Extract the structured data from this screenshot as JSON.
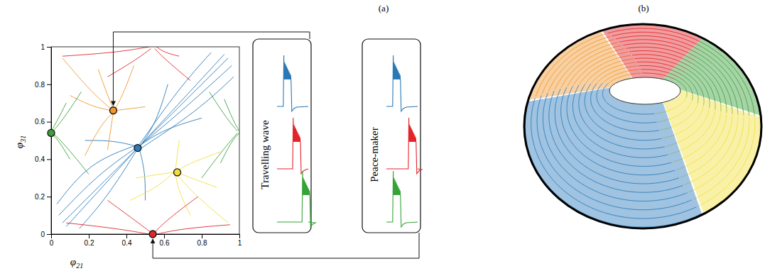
{
  "panel_labels": [
    "(a)",
    "(b)"
  ],
  "chart_data": {
    "type": "scatter",
    "x_label": "φ21",
    "y_label": "φ31",
    "xlim": [
      0,
      1
    ],
    "ylim": [
      0,
      1
    ],
    "xticks": [
      0,
      0.2,
      0.4,
      0.6,
      0.8,
      1
    ],
    "yticks": [
      0,
      0.2,
      0.4,
      0.6,
      0.8,
      1
    ],
    "series": [
      {
        "type": "scatter",
        "x": [
          0,
          0.33,
          0.46,
          0.67,
          0.54
        ],
        "values": [
          0.54,
          0.66,
          0.46,
          0.33,
          0
        ],
        "colors": [
          "#3c9f3c",
          "#f0972e",
          "#2b7bba",
          "#f2df3f",
          "#e0262b"
        ]
      },
      {
        "type": "line",
        "color": "#2b7bba",
        "x": [
          0.04,
          0.25,
          0.45
        ],
        "values": [
          0.1,
          0.32,
          0.46
        ]
      },
      {
        "type": "line",
        "color": "#2b7bba",
        "x": [
          0.08,
          0.28,
          0.45
        ],
        "values": [
          0.04,
          0.26,
          0.45
        ]
      },
      {
        "type": "line",
        "color": "#2b7bba",
        "x": [
          0.03,
          0.2,
          0.44
        ],
        "values": [
          0.16,
          0.38,
          0.47
        ]
      },
      {
        "type": "line",
        "color": "#2b7bba",
        "x": [
          0.15,
          0.3,
          0.45
        ],
        "values": [
          0.03,
          0.2,
          0.44
        ]
      },
      {
        "type": "line",
        "color": "#2b7bba",
        "x": [
          0.96,
          0.72,
          0.47
        ],
        "values": [
          0.9,
          0.68,
          0.47
        ]
      },
      {
        "type": "line",
        "color": "#2b7bba",
        "x": [
          0.92,
          0.7,
          0.47
        ],
        "values": [
          0.96,
          0.72,
          0.47
        ]
      },
      {
        "type": "line",
        "color": "#2b7bba",
        "x": [
          0.97,
          0.78,
          0.48
        ],
        "values": [
          0.84,
          0.66,
          0.46
        ]
      },
      {
        "type": "line",
        "color": "#2b7bba",
        "x": [
          0.85,
          0.68,
          0.47
        ],
        "values": [
          0.97,
          0.78,
          0.48
        ]
      },
      {
        "type": "line",
        "color": "#2b7bba",
        "x": [
          0.18,
          0.33,
          0.45
        ],
        "values": [
          0.5,
          0.5,
          0.47
        ]
      },
      {
        "type": "line",
        "color": "#2b7bba",
        "x": [
          0.5,
          0.5,
          0.47
        ],
        "values": [
          0.18,
          0.33,
          0.45
        ]
      },
      {
        "type": "line",
        "color": "#2b7bba",
        "x": [
          0.62,
          0.56,
          0.48
        ],
        "values": [
          0.8,
          0.6,
          0.48
        ]
      },
      {
        "type": "line",
        "color": "#2b7bba",
        "x": [
          0.8,
          0.6,
          0.48
        ],
        "values": [
          0.62,
          0.56,
          0.48
        ]
      },
      {
        "type": "line",
        "color": "#2b7bba",
        "x": [
          0.06,
          0.3,
          0.45
        ],
        "values": [
          0.06,
          0.3,
          0.45
        ]
      },
      {
        "type": "line",
        "color": "#2b7bba",
        "x": [
          0.94,
          0.7,
          0.47
        ],
        "values": [
          0.94,
          0.7,
          0.47
        ]
      },
      {
        "type": "line",
        "color": "#f0972e",
        "x": [
          0.06,
          0.22,
          0.33
        ],
        "values": [
          0.94,
          0.75,
          0.66
        ]
      },
      {
        "type": "line",
        "color": "#f0972e",
        "x": [
          0.18,
          0.26,
          0.33
        ],
        "values": [
          0.42,
          0.58,
          0.65
        ]
      },
      {
        "type": "line",
        "color": "#f0972e",
        "x": [
          0.44,
          0.38,
          0.34
        ],
        "values": [
          0.9,
          0.74,
          0.67
        ]
      },
      {
        "type": "line",
        "color": "#f0972e",
        "x": [
          0.1,
          0.22,
          0.32
        ],
        "values": [
          0.74,
          0.68,
          0.66
        ]
      },
      {
        "type": "line",
        "color": "#f0972e",
        "x": [
          0.5,
          0.42,
          0.34
        ],
        "values": [
          0.68,
          0.67,
          0.66
        ]
      },
      {
        "type": "line",
        "color": "#f0972e",
        "x": [
          0.25,
          0.3,
          0.33
        ],
        "values": [
          0.88,
          0.74,
          0.67
        ]
      },
      {
        "type": "line",
        "color": "#f0972e",
        "x": [
          0.3,
          0.32,
          0.33
        ],
        "values": [
          0.45,
          0.58,
          0.65
        ]
      },
      {
        "type": "line",
        "color": "#f2df3f",
        "x": [
          0.94,
          0.75,
          0.66
        ],
        "values": [
          0.06,
          0.22,
          0.33
        ]
      },
      {
        "type": "line",
        "color": "#f2df3f",
        "x": [
          0.42,
          0.58,
          0.65
        ],
        "values": [
          0.18,
          0.26,
          0.33
        ]
      },
      {
        "type": "line",
        "color": "#f2df3f",
        "x": [
          0.9,
          0.74,
          0.67
        ],
        "values": [
          0.44,
          0.38,
          0.34
        ]
      },
      {
        "type": "line",
        "color": "#f2df3f",
        "x": [
          0.74,
          0.68,
          0.66
        ],
        "values": [
          0.1,
          0.22,
          0.32
        ]
      },
      {
        "type": "line",
        "color": "#f2df3f",
        "x": [
          0.68,
          0.67,
          0.66
        ],
        "values": [
          0.5,
          0.42,
          0.34
        ]
      },
      {
        "type": "line",
        "color": "#f2df3f",
        "x": [
          0.88,
          0.74,
          0.67
        ],
        "values": [
          0.25,
          0.3,
          0.33
        ]
      },
      {
        "type": "line",
        "color": "#f2df3f",
        "x": [
          0.45,
          0.58,
          0.65
        ],
        "values": [
          0.3,
          0.32,
          0.33
        ]
      },
      {
        "type": "line",
        "color": "#3c9f3c",
        "x": [
          0.2,
          0.08,
          0.01
        ],
        "values": [
          0.32,
          0.47,
          0.54
        ]
      },
      {
        "type": "line",
        "color": "#3c9f3c",
        "x": [
          0.16,
          0.07,
          0.01
        ],
        "values": [
          0.76,
          0.62,
          0.55
        ]
      },
      {
        "type": "line",
        "color": "#3c9f3c",
        "x": [
          0.1,
          0.04,
          0
        ],
        "values": [
          0.4,
          0.5,
          0.54
        ]
      },
      {
        "type": "line",
        "color": "#3c9f3c",
        "x": [
          0.08,
          0.03,
          0
        ],
        "values": [
          0.7,
          0.6,
          0.55
        ]
      },
      {
        "type": "line",
        "color": "#3c9f3c",
        "x": [
          0.8,
          0.92,
          0.99
        ],
        "values": [
          0.3,
          0.46,
          0.54
        ]
      },
      {
        "type": "line",
        "color": "#3c9f3c",
        "x": [
          0.84,
          0.93,
          0.99
        ],
        "values": [
          0.76,
          0.62,
          0.55
        ]
      },
      {
        "type": "line",
        "color": "#3c9f3c",
        "x": [
          0.9,
          0.96,
          1
        ],
        "values": [
          0.38,
          0.5,
          0.54
        ]
      },
      {
        "type": "line",
        "color": "#3c9f3c",
        "x": [
          0.92,
          0.97,
          1
        ],
        "values": [
          0.72,
          0.6,
          0.55
        ]
      },
      {
        "type": "line",
        "color": "#e0262b",
        "x": [
          0.3,
          0.45,
          0.53
        ],
        "values": [
          0.18,
          0.07,
          0.01
        ]
      },
      {
        "type": "line",
        "color": "#e0262b",
        "x": [
          0.78,
          0.62,
          0.55
        ],
        "values": [
          0.2,
          0.08,
          0.01
        ]
      },
      {
        "type": "line",
        "color": "#e0262b",
        "x": [
          0.08,
          0.35,
          0.52
        ],
        "values": [
          0.06,
          0.03,
          0
        ]
      },
      {
        "type": "line",
        "color": "#e0262b",
        "x": [
          0.95,
          0.7,
          0.56
        ],
        "values": [
          0.05,
          0.03,
          0
        ]
      },
      {
        "type": "line",
        "color": "#e0262b",
        "x": [
          0.3,
          0.45,
          0.53
        ],
        "values": [
          0.84,
          0.93,
          0.99
        ]
      },
      {
        "type": "line",
        "color": "#e0262b",
        "x": [
          0.74,
          0.62,
          0.55
        ],
        "values": [
          0.82,
          0.92,
          0.99
        ]
      },
      {
        "type": "line",
        "color": "#e0262b",
        "x": [
          0.06,
          0.35,
          0.52
        ],
        "values": [
          0.95,
          0.97,
          1
        ]
      },
      {
        "type": "line",
        "color": "#e0262b",
        "x": [
          0.68,
          0.6,
          0.56
        ],
        "values": [
          0.95,
          0.97,
          1
        ]
      }
    ]
  },
  "insets": [
    {
      "label": "Travelling wave",
      "target": 1,
      "traces": [
        {
          "color": "#2a78b5",
          "burst": 0.2
        },
        {
          "color": "#e3242b",
          "burst": 0.5
        },
        {
          "color": "#36a336",
          "burst": 0.8
        }
      ]
    },
    {
      "label": "Peace-maker",
      "target": 4,
      "traces": [
        {
          "color": "#2a78b5",
          "burst": 0.2
        },
        {
          "color": "#e3242b",
          "burst": 0.7
        },
        {
          "color": "#36a336",
          "burst": 0.2
        }
      ]
    }
  ],
  "torus": {
    "colors": [
      "#f0972e",
      "#e0262b",
      "#3c9f3c",
      "#f2df3f",
      "#2b7bba"
    ]
  }
}
